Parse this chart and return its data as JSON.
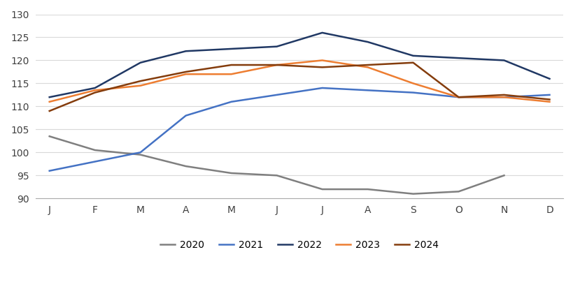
{
  "months": [
    "J",
    "F",
    "M",
    "A",
    "M",
    "J",
    "J",
    "A",
    "S",
    "O",
    "N",
    "D"
  ],
  "series": {
    "2020": [
      103.5,
      100.5,
      99.5,
      97.0,
      95.5,
      95.0,
      92.0,
      92.0,
      91.0,
      91.5,
      95.0,
      null
    ],
    "2021": [
      96.0,
      98.0,
      100.0,
      108.0,
      111.0,
      112.5,
      114.0,
      113.5,
      113.0,
      112.0,
      112.0,
      112.5
    ],
    "2022": [
      112.0,
      114.0,
      119.5,
      122.0,
      122.5,
      123.0,
      126.0,
      124.0,
      121.0,
      120.5,
      120.0,
      116.0
    ],
    "2023": [
      111.0,
      113.5,
      114.5,
      117.0,
      117.0,
      119.0,
      120.0,
      118.5,
      115.0,
      112.0,
      112.0,
      111.0
    ],
    "2024": [
      109.0,
      113.0,
      115.5,
      117.5,
      119.0,
      119.0,
      118.5,
      119.0,
      119.5,
      112.0,
      112.5,
      111.5
    ]
  },
  "colors": {
    "2020": "#7f7f7f",
    "2021": "#4472c4",
    "2022": "#203864",
    "2023": "#ed7d31",
    "2024": "#843c0c"
  },
  "ylim": [
    90,
    130
  ],
  "yticks": [
    90,
    95,
    100,
    105,
    110,
    115,
    120,
    125,
    130
  ],
  "background_color": "#ffffff",
  "grid_color": "#d9d9d9"
}
